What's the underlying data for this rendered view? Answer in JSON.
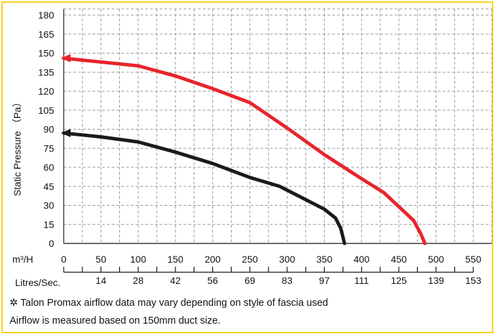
{
  "chart_data": {
    "type": "line",
    "ylabel": "Static Pressure （Pa）",
    "y_ticks": [
      0,
      15,
      30,
      45,
      60,
      75,
      90,
      105,
      120,
      135,
      150,
      165,
      180
    ],
    "ylim": [
      0,
      180
    ],
    "xlim": [
      0,
      550
    ],
    "x_axis_label_primary": "m³/H",
    "x_ticks_primary": [
      0,
      50,
      100,
      150,
      200,
      250,
      300,
      350,
      400,
      450,
      500,
      550
    ],
    "x_axis_label_secondary": "Litres/Sec.",
    "x_ticks_secondary": [
      {
        "label": "14",
        "x": 50
      },
      {
        "label": "28",
        "x": 100
      },
      {
        "label": "42",
        "x": 150
      },
      {
        "label": "56",
        "x": 200
      },
      {
        "label": "69",
        "x": 250
      },
      {
        "label": "83",
        "x": 300
      },
      {
        "label": "97",
        "x": 350
      },
      {
        "label": "111",
        "x": 400
      },
      {
        "label": "125",
        "x": 450
      },
      {
        "label": "139",
        "x": 500
      },
      {
        "label": "153",
        "x": 550
      }
    ],
    "grid": true,
    "series": [
      {
        "color": "#e8242b",
        "points": [
          [
            0,
            146
          ],
          [
            50,
            143
          ],
          [
            100,
            140
          ],
          [
            150,
            132
          ],
          [
            200,
            122
          ],
          [
            250,
            111
          ],
          [
            300,
            91
          ],
          [
            350,
            70
          ],
          [
            400,
            51
          ],
          [
            430,
            40
          ],
          [
            470,
            18
          ],
          [
            480,
            7
          ],
          [
            485,
            0
          ]
        ]
      },
      {
        "color": "#1a1a1a",
        "points": [
          [
            0,
            87
          ],
          [
            50,
            84
          ],
          [
            100,
            80
          ],
          [
            150,
            72
          ],
          [
            200,
            63
          ],
          [
            250,
            52
          ],
          [
            290,
            45
          ],
          [
            320,
            36
          ],
          [
            350,
            27
          ],
          [
            365,
            20
          ],
          [
            372,
            12
          ],
          [
            375,
            5
          ],
          [
            377,
            0
          ]
        ]
      }
    ]
  },
  "notes": {
    "line1": "✲ Talon Promax airflow data may vary depending on style of fascia used",
    "line2": "Airflow is measured based on 150mm duct size."
  },
  "colors": {
    "border": "#f5d21a",
    "grid": "#9a9a9a"
  }
}
